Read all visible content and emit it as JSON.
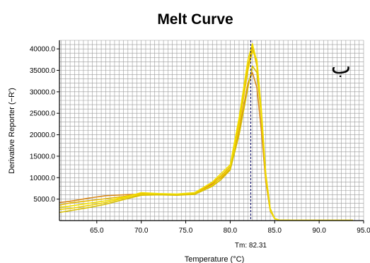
{
  "chart_data": {
    "type": "line",
    "title": "Melt Curve",
    "xlabel": "Temperature (°C)",
    "ylabel": "Derivative Reporter (−R')",
    "xlim": [
      60.8,
      95.0
    ],
    "ylim": [
      0,
      42000
    ],
    "x_ticks": [
      65,
      70,
      75,
      80,
      85,
      90,
      95
    ],
    "x_tick_labels": [
      "65.0",
      "70.0",
      "75.0",
      "80.0",
      "85.0",
      "90.0",
      "95.0"
    ],
    "y_ticks": [
      5000,
      10000,
      15000,
      20000,
      25000,
      30000,
      35000,
      40000
    ],
    "y_tick_labels": [
      "5000.0",
      "10000.0",
      "15000.0",
      "20000.0",
      "25000.0",
      "30000.0",
      "35000.0",
      "40000.0"
    ],
    "grid": true,
    "tm_marker": {
      "x": 82.31,
      "label": "Tm: 82.31"
    },
    "annotation": "ب",
    "series": [
      {
        "color": "#d98a1a",
        "x": [
          60.8,
          62,
          64,
          66,
          68,
          70,
          72,
          74,
          76,
          78,
          79,
          80,
          81,
          82,
          82.5,
          83,
          83.5,
          84,
          84.5,
          85,
          85.5,
          87,
          90,
          93.8
        ],
        "y": [
          4200,
          4500,
          5200,
          5800,
          6000,
          6200,
          6000,
          6100,
          6400,
          8500,
          10000,
          12000,
          21000,
          32000,
          34500,
          31000,
          21000,
          9000,
          2200,
          400,
          100,
          50,
          50,
          50
        ]
      },
      {
        "color": "#e8b800",
        "x": [
          60.8,
          62,
          64,
          66,
          68,
          70,
          72,
          74,
          76,
          78,
          79,
          80,
          81,
          82,
          82.5,
          83,
          83.5,
          84,
          84.5,
          85,
          85.5,
          87,
          90,
          93.8
        ],
        "y": [
          3600,
          4100,
          4600,
          5100,
          5600,
          6300,
          6100,
          6000,
          6300,
          8800,
          10500,
          12600,
          23000,
          36000,
          40500,
          36000,
          24000,
          10000,
          2500,
          450,
          100,
          50,
          50,
          50
        ]
      },
      {
        "color": "#efd200",
        "x": [
          60.8,
          62,
          64,
          66,
          68,
          70,
          72,
          74,
          76,
          78,
          79,
          80,
          81,
          82,
          82.5,
          83,
          83.5,
          84,
          84.5,
          85,
          85.5,
          87,
          90,
          93.8
        ],
        "y": [
          2600,
          2800,
          3500,
          4200,
          5200,
          6100,
          6200,
          6000,
          6200,
          8200,
          10200,
          12200,
          22000,
          35000,
          39500,
          37500,
          26000,
          11000,
          2800,
          500,
          100,
          50,
          50,
          50
        ]
      },
      {
        "color": "#d8c000",
        "x": [
          60.8,
          62,
          64,
          66,
          68,
          70,
          72,
          74,
          76,
          78,
          79,
          80,
          81,
          82,
          82.5,
          83,
          83.5,
          84,
          84.5,
          85,
          85.5,
          87,
          90,
          93.8
        ],
        "y": [
          1900,
          2300,
          3000,
          3800,
          4900,
          5900,
          6000,
          5900,
          6100,
          8000,
          9600,
          11800,
          20000,
          31000,
          36000,
          34500,
          24500,
          10500,
          2600,
          450,
          100,
          50,
          50,
          50
        ]
      },
      {
        "color": "#f2e000",
        "x": [
          60.8,
          62,
          64,
          66,
          68,
          70,
          72,
          74,
          76,
          78,
          79,
          80,
          81,
          82,
          82.5,
          83,
          83.5,
          84,
          84.5,
          85,
          85.5,
          87,
          90,
          93.8
        ],
        "y": [
          3100,
          3400,
          4000,
          4600,
          5400,
          6500,
          6300,
          6200,
          6500,
          9000,
          11000,
          13000,
          24000,
          37500,
          41200,
          37000,
          25000,
          10300,
          2400,
          420,
          100,
          50,
          50,
          50
        ]
      }
    ]
  }
}
